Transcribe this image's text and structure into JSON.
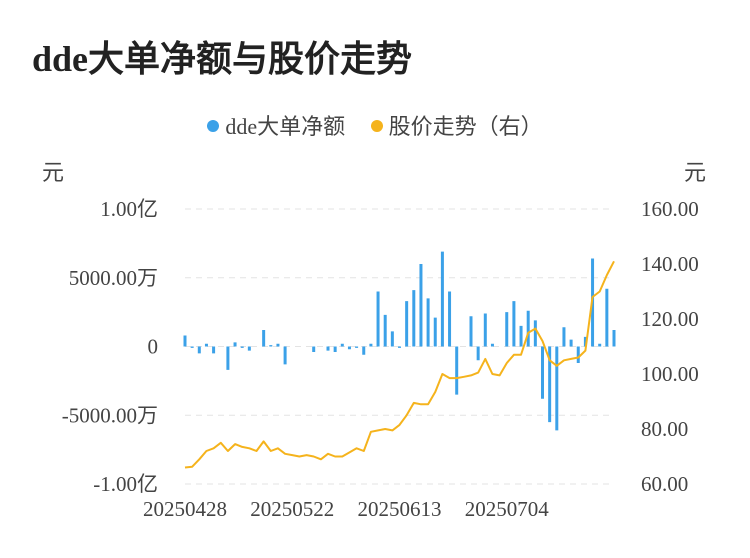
{
  "page_title": "dde大单净额与股价走势",
  "colors": {
    "bar": "#3ba1e8",
    "line": "#f5b31c",
    "grid": "#e3e3e3"
  },
  "chart_data": {
    "type": "bar",
    "title": "dde大单净额与股价走势",
    "legend": [
      "dde大单净额",
      "股价走势（右）"
    ],
    "left_unit": "元",
    "right_unit": "元",
    "left_ticks": [
      {
        "value": 10000,
        "label": "1.00亿"
      },
      {
        "value": 5000,
        "label": "5000.00万"
      },
      {
        "value": 0,
        "label": "0"
      },
      {
        "value": -5000,
        "label": "-5000.00万"
      },
      {
        "value": -10000,
        "label": "-1.00亿"
      }
    ],
    "right_ticks": [
      "160.00",
      "140.00",
      "120.00",
      "100.00",
      "80.00",
      "60.00"
    ],
    "x_ticks": [
      "20250428",
      "20250522",
      "20250613",
      "20250704"
    ],
    "x_tick_indices": [
      0,
      15,
      30,
      45
    ],
    "ylim_left": [
      -10000,
      10000
    ],
    "ylim_right": [
      60,
      160
    ],
    "grid": true,
    "series": [
      {
        "name": "dde大单净额",
        "type": "bar",
        "axis": "left",
        "values": [
          800,
          -100,
          -500,
          200,
          -500,
          0,
          -1700,
          300,
          -100,
          -300,
          0,
          1200,
          100,
          200,
          -1300,
          0,
          0,
          0,
          -400,
          0,
          -300,
          -400,
          200,
          -200,
          -100,
          -600,
          200,
          4000,
          2300,
          1100,
          -100,
          3300,
          4100,
          6000,
          3500,
          2100,
          6900,
          4000,
          -3500,
          0,
          2200,
          -1000,
          2400,
          200,
          0,
          2500,
          3300,
          1500,
          2600,
          1900,
          -3800,
          -5500,
          -6100,
          1400,
          500,
          -1200,
          700,
          6400,
          200,
          4200,
          1200
        ]
      },
      {
        "name": "股价走势（右）",
        "type": "line",
        "axis": "right",
        "values": [
          66,
          66.3,
          69,
          72,
          73,
          75,
          72,
          74.5,
          73.5,
          73,
          72,
          75.5,
          72,
          73,
          71,
          70.5,
          70,
          70.5,
          70,
          69,
          71,
          70,
          70,
          71.5,
          73,
          72,
          79,
          79.5,
          80,
          79.5,
          81.5,
          85,
          89.5,
          89,
          89,
          93.5,
          100,
          98.5,
          98.5,
          99,
          99.5,
          100.5,
          105.5,
          100,
          99.5,
          104,
          107,
          107,
          115,
          116.5,
          112,
          105,
          103,
          105,
          105.5,
          106,
          108.5,
          128,
          130,
          136,
          141
        ]
      }
    ]
  }
}
